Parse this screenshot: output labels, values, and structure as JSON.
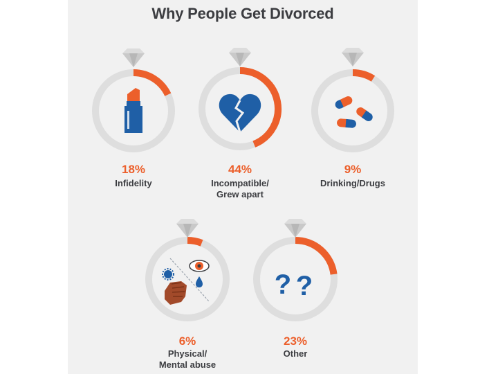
{
  "chart_data": {
    "type": "donut",
    "title": "Why People Get Divorced",
    "categories": [
      "Infidelity",
      "Incompatible/ Grew apart",
      "Drinking/Drugs",
      "Physical/ Mental abuse",
      "Other"
    ],
    "values": [
      18,
      44,
      9,
      6,
      23
    ],
    "unit": "%",
    "items": [
      {
        "value": 18,
        "value_label": "18%",
        "label_lines": [
          "Infidelity"
        ],
        "icon": "lipstick-icon"
      },
      {
        "value": 44,
        "value_label": "44%",
        "label_lines": [
          "Incompatible/",
          "Grew apart"
        ],
        "icon": "broken-heart-icon"
      },
      {
        "value": 9,
        "value_label": "9%",
        "label_lines": [
          "Drinking/Drugs"
        ],
        "icon": "pills-icon"
      },
      {
        "value": 6,
        "value_label": "6%",
        "label_lines": [
          "Physical/",
          "Mental abuse"
        ],
        "icon": "abuse-icon"
      },
      {
        "value": 23,
        "value_label": "23%",
        "label_lines": [
          "Other"
        ],
        "icon": "question-marks-icon"
      }
    ],
    "colors": {
      "accent": "#ec5f2b",
      "ring": "#dedede",
      "icon_blue": "#1f5fa6",
      "text": "#3c3d41"
    }
  }
}
